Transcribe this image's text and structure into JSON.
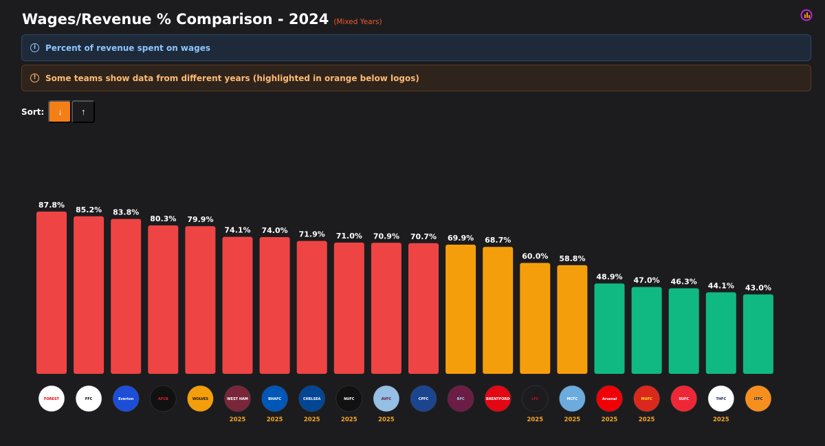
{
  "header": {
    "title": "Wages/Revenue % Comparison - 2024",
    "subtitle": "(Mixed Years)",
    "corner_icon": "chart-logo-icon"
  },
  "banners": {
    "info_text": "Percent of revenue spent on wages",
    "info_icon": "info-icon",
    "warning_text": "Some teams show data from different years (highlighted in orange below logos)",
    "warning_icon": "warning-icon"
  },
  "sort": {
    "label": "Sort:",
    "desc_symbol": "↓",
    "asc_symbol": "↑",
    "active": "desc"
  },
  "colors": {
    "high": "#ef4444",
    "mid": "#f59e0b",
    "low": "#10b981",
    "year_note": "#f5a524"
  },
  "chart_data": {
    "type": "bar",
    "title": "Wages/Revenue % Comparison - 2024",
    "ylabel": "Percent of revenue spent on wages",
    "value_suffix": "%",
    "ylim": [
      0,
      100
    ],
    "bars": [
      {
        "team": "Nottingham Forest",
        "value": 87.8,
        "tier": "high",
        "year": "",
        "logo_text": "FOREST",
        "logo_bg": "#ffffff",
        "logo_fg": "#dd0000"
      },
      {
        "team": "Fulham",
        "value": 85.2,
        "tier": "high",
        "year": "",
        "logo_text": "FFC",
        "logo_bg": "#ffffff",
        "logo_fg": "#000000"
      },
      {
        "team": "Everton",
        "value": 83.8,
        "tier": "high",
        "year": "",
        "logo_text": "Everton",
        "logo_bg": "#1d4ed8",
        "logo_fg": "#ffffff"
      },
      {
        "team": "Bournemouth",
        "value": 80.3,
        "tier": "high",
        "year": "",
        "logo_text": "AFCB",
        "logo_bg": "#111111",
        "logo_fg": "#dc2626"
      },
      {
        "team": "Wolves",
        "value": 79.9,
        "tier": "high",
        "year": "",
        "logo_text": "WOLVES",
        "logo_bg": "#f59e0b",
        "logo_fg": "#111111"
      },
      {
        "team": "West Ham United",
        "value": 74.1,
        "tier": "high",
        "year": "2025",
        "logo_text": "WEST HAM",
        "logo_bg": "#7a263a",
        "logo_fg": "#ffffff"
      },
      {
        "team": "Brighton",
        "value": 74.0,
        "tier": "high",
        "year": "2025",
        "logo_text": "BHAFC",
        "logo_bg": "#0057b8",
        "logo_fg": "#ffffff"
      },
      {
        "team": "Chelsea",
        "value": 71.9,
        "tier": "high",
        "year": "2025",
        "logo_text": "CHELSEA",
        "logo_bg": "#034694",
        "logo_fg": "#ffffff"
      },
      {
        "team": "Newcastle United",
        "value": 71.0,
        "tier": "high",
        "year": "2025",
        "logo_text": "NUFC",
        "logo_bg": "#111111",
        "logo_fg": "#ffffff"
      },
      {
        "team": "Aston Villa",
        "value": 70.9,
        "tier": "high",
        "year": "2025",
        "logo_text": "AVFC",
        "logo_bg": "#95bfe5",
        "logo_fg": "#670e36"
      },
      {
        "team": "Crystal Palace",
        "value": 70.7,
        "tier": "high",
        "year": "",
        "logo_text": "CPFC",
        "logo_bg": "#1b458f",
        "logo_fg": "#ffffff"
      },
      {
        "team": "Burnley",
        "value": 69.9,
        "tier": "mid",
        "year": "",
        "logo_text": "BFC",
        "logo_bg": "#6c1d45",
        "logo_fg": "#99d6ea"
      },
      {
        "team": "Brentford",
        "value": 68.7,
        "tier": "mid",
        "year": "",
        "logo_text": "BRENTFORD",
        "logo_bg": "#e30613",
        "logo_fg": "#ffffff"
      },
      {
        "team": "Liverpool",
        "value": 60.0,
        "tier": "mid",
        "year": "2025",
        "logo_text": "LFC",
        "logo_bg": "#1c1c1f",
        "logo_fg": "#c8102e"
      },
      {
        "team": "Manchester City",
        "value": 58.8,
        "tier": "mid",
        "year": "2025",
        "logo_text": "MCFC",
        "logo_bg": "#6cabdd",
        "logo_fg": "#ffffff"
      },
      {
        "team": "Arsenal",
        "value": 48.9,
        "tier": "low",
        "year": "2025",
        "logo_text": "Arsenal",
        "logo_bg": "#ef0107",
        "logo_fg": "#ffffff"
      },
      {
        "team": "Manchester United",
        "value": 47.0,
        "tier": "low",
        "year": "2025",
        "logo_text": "MUFC",
        "logo_bg": "#da291c",
        "logo_fg": "#fbe122"
      },
      {
        "team": "Sheffield United",
        "value": 46.3,
        "tier": "low",
        "year": "",
        "logo_text": "SUFC",
        "logo_bg": "#ee2737",
        "logo_fg": "#ffffff"
      },
      {
        "team": "Tottenham Hotspur",
        "value": 44.1,
        "tier": "low",
        "year": "2025",
        "logo_text": "THFC",
        "logo_bg": "#ffffff",
        "logo_fg": "#132257"
      },
      {
        "team": "Luton Town",
        "value": 43.0,
        "tier": "low",
        "year": "",
        "logo_text": "LTFC",
        "logo_bg": "#f78f1e",
        "logo_fg": "#002d62"
      }
    ]
  }
}
